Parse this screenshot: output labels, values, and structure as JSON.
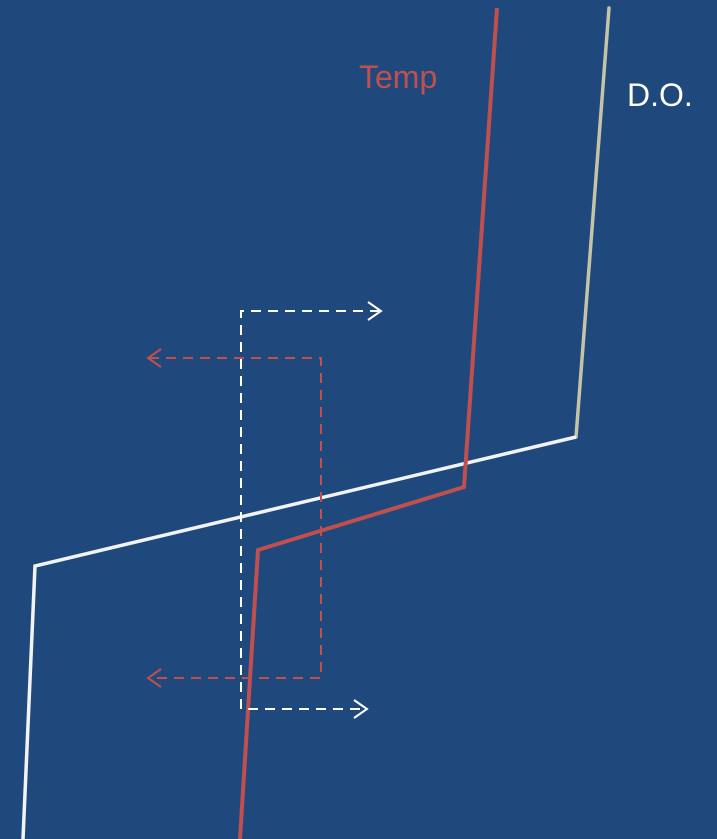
{
  "labels": {
    "temp": "Temp",
    "do": "D.O."
  },
  "colors": {
    "background": "#1f497d",
    "temp": "#c0504d",
    "do": "#c4c4a8",
    "white": "#ffffff"
  }
}
